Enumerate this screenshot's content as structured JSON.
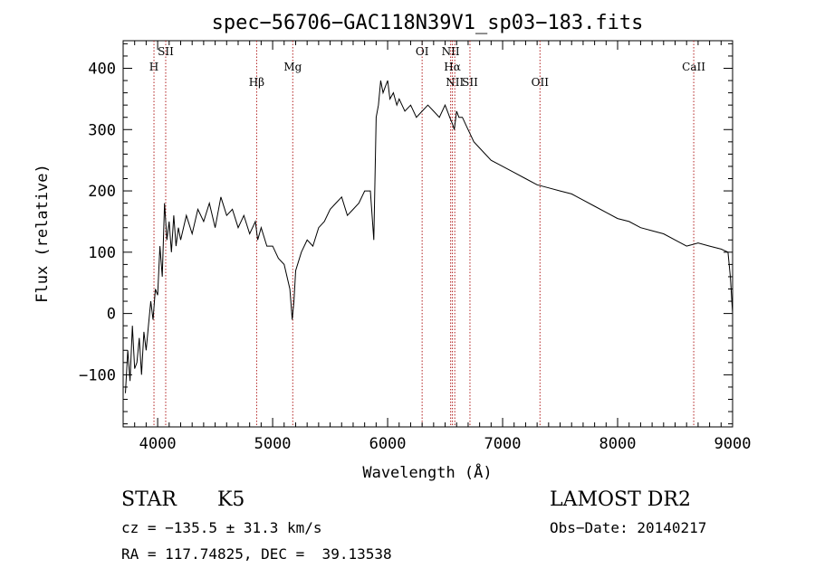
{
  "chart_data": {
    "type": "line",
    "title": "spec−56706−GAC118N39V1_sp03−183.fits",
    "xlabel": "Wavelength (Å)",
    "ylabel": "Flux (relative)",
    "xlim": [
      3700,
      9000
    ],
    "ylim": [
      -185,
      445
    ],
    "xticks": [
      4000,
      5000,
      6000,
      7000,
      8000,
      9000
    ],
    "xtick_labels": [
      "4000",
      "5000",
      "6000",
      "7000",
      "8000",
      "9000"
    ],
    "yticks": [
      -100,
      0,
      100,
      200,
      300,
      400
    ],
    "ytick_labels": [
      "−100",
      "0",
      "100",
      "200",
      "300",
      "400"
    ],
    "line_color": "#000000",
    "marker_color": "#b22222",
    "series": [
      {
        "x": [
          3720,
          3740,
          3760,
          3780,
          3800,
          3820,
          3840,
          3860,
          3880,
          3900,
          3920,
          3940,
          3960,
          3980,
          4000,
          4020,
          4040,
          4060,
          4080,
          4100,
          4120,
          4140,
          4160,
          4180,
          4200,
          4250,
          4300,
          4350,
          4400,
          4450,
          4500,
          4550,
          4600,
          4650,
          4700,
          4750,
          4800,
          4850,
          4870,
          4900,
          4950,
          5000,
          5050,
          5100,
          5150,
          5170,
          5185,
          5200,
          5250,
          5300,
          5350,
          5400,
          5450,
          5500,
          5550,
          5600,
          5650,
          5700,
          5750,
          5800,
          5850,
          5880,
          5900,
          5920,
          5940,
          5960,
          5980,
          6000,
          6020,
          6050,
          6080,
          6100,
          6150,
          6200,
          6250,
          6300,
          6350,
          6400,
          6450,
          6500,
          6520,
          6540,
          6563,
          6580,
          6600,
          6620,
          6650,
          6700,
          6750,
          6800,
          6900,
          7000,
          7100,
          7200,
          7300,
          7400,
          7500,
          7600,
          7700,
          7800,
          7900,
          8000,
          8100,
          8200,
          8300,
          8400,
          8500,
          8600,
          8700,
          8800,
          8900,
          8960,
          8980,
          9000
        ],
        "y": [
          -130,
          -60,
          -110,
          -20,
          -90,
          -80,
          -40,
          -100,
          -30,
          -60,
          -20,
          20,
          -10,
          40,
          30,
          110,
          60,
          180,
          120,
          150,
          100,
          160,
          110,
          140,
          120,
          160,
          130,
          170,
          150,
          180,
          140,
          190,
          160,
          170,
          140,
          160,
          130,
          150,
          120,
          140,
          110,
          110,
          90,
          80,
          40,
          -10,
          20,
          70,
          100,
          120,
          110,
          140,
          150,
          170,
          180,
          190,
          160,
          170,
          180,
          200,
          200,
          120,
          320,
          340,
          380,
          360,
          370,
          380,
          350,
          360,
          340,
          350,
          330,
          340,
          320,
          330,
          340,
          330,
          320,
          340,
          330,
          320,
          310,
          300,
          330,
          320,
          320,
          300,
          280,
          270,
          250,
          240,
          230,
          220,
          210,
          205,
          200,
          195,
          185,
          175,
          165,
          155,
          150,
          140,
          135,
          130,
          120,
          110,
          115,
          110,
          105,
          100,
          60,
          0
        ]
      }
    ],
    "spectral_lines": [
      {
        "label": "H",
        "x": 3968,
        "label_row": 2
      },
      {
        "label": "SII",
        "x": 4070,
        "label_row": 1
      },
      {
        "label": "Hβ",
        "x": 4861,
        "label_row": 3
      },
      {
        "label": "Mg",
        "x": 5175,
        "label_row": 2
      },
      {
        "label": "OI",
        "x": 6300,
        "label_row": 1
      },
      {
        "label": "NII",
        "x": 6548,
        "label_row": 1
      },
      {
        "label": "Hα",
        "x": 6563,
        "label_row": 2
      },
      {
        "label": "NII",
        "x": 6584,
        "label_row": 3
      },
      {
        "label": "SII",
        "x": 6716,
        "label_row": 3
      },
      {
        "label": "OII",
        "x": 7325,
        "label_row": 3
      },
      {
        "label": "CaII",
        "x": 8662,
        "label_row": 2
      }
    ]
  },
  "info": {
    "object_class": "STAR",
    "subclass": "K5",
    "survey": "LAMOST DR2",
    "cz": "cz = −135.5 ± 31.3 km/s",
    "obs_date": "Obs−Date: 20140217",
    "radec": "RA = 117.74825, DEC =  39.13538"
  }
}
